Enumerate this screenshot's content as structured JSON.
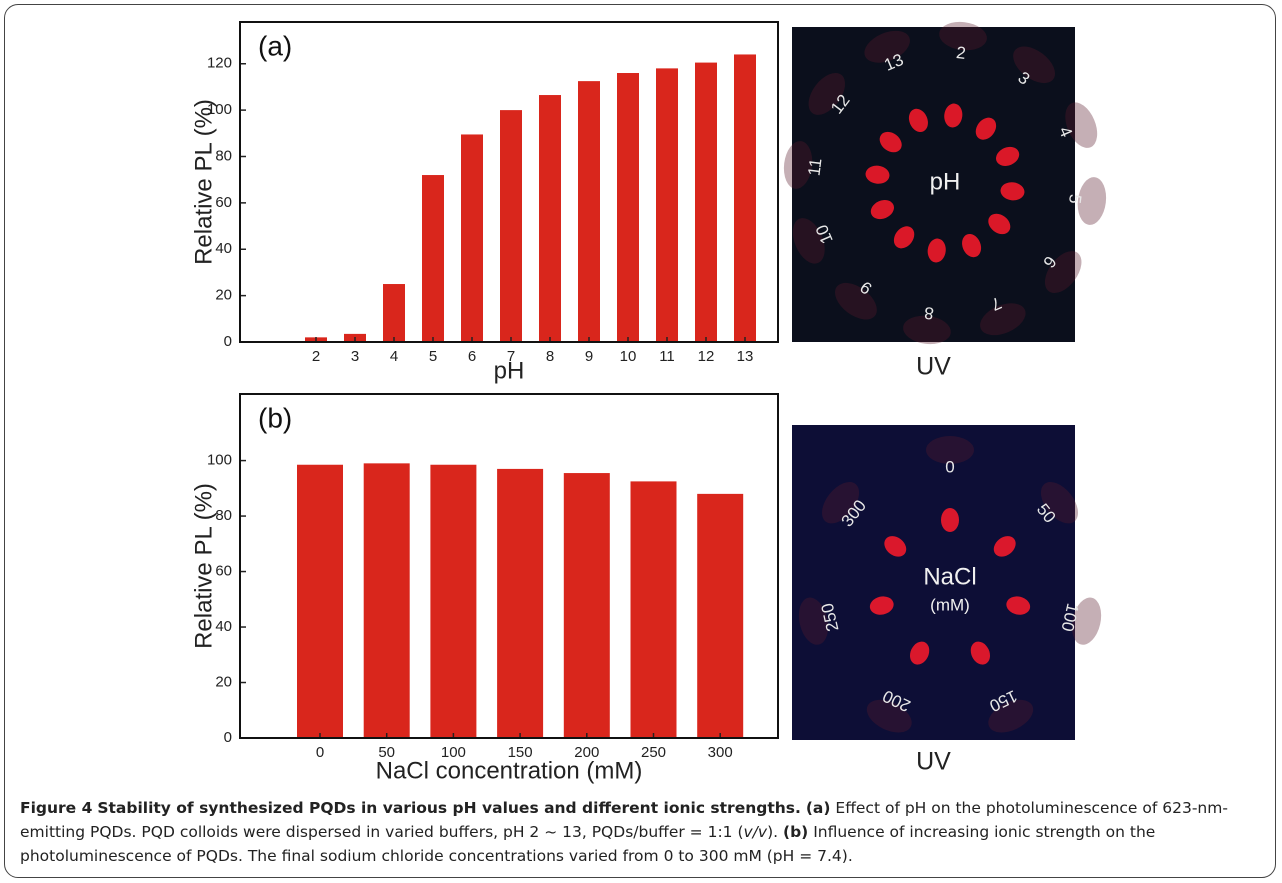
{
  "chart_data": [
    {
      "type": "bar",
      "panel_label": "(a)",
      "x_label": "pH",
      "y_label": "Relative PL (%)",
      "categories": [
        "2",
        "3",
        "4",
        "5",
        "6",
        "7",
        "8",
        "9",
        "10",
        "11",
        "12",
        "13"
      ],
      "values": [
        2,
        3.5,
        25,
        72,
        89.5,
        100,
        106.5,
        112.5,
        116,
        118,
        120.5,
        124
      ],
      "color": "#d9261c",
      "ylim": [
        0,
        138
      ],
      "yticks": [
        0,
        20,
        40,
        60,
        80,
        100,
        120
      ]
    },
    {
      "type": "bar",
      "panel_label": "(b)",
      "x_label": "NaCl concentration (mM)",
      "y_label": "Relative PL (%)",
      "categories": [
        "0",
        "50",
        "100",
        "150",
        "200",
        "250",
        "300"
      ],
      "values": [
        98.5,
        99,
        98.5,
        97,
        95.5,
        92.5,
        88
      ],
      "color": "#d9261c",
      "ylim": [
        0,
        124
      ],
      "yticks": [
        0,
        20,
        40,
        60,
        80,
        100
      ]
    }
  ],
  "photos": [
    {
      "labels": [
        "2",
        "3",
        "4",
        "5",
        "6",
        "7",
        "8",
        "9",
        "10",
        "11",
        "12",
        "13"
      ],
      "center": [
        "pH"
      ],
      "caption": "UV"
    },
    {
      "labels": [
        "0",
        "50",
        "100",
        "150",
        "200",
        "250",
        "300"
      ],
      "center": [
        "NaCl",
        "(mM)"
      ],
      "caption": "UV"
    }
  ],
  "caption": {
    "figure": "Figure 4",
    "title": "Stability of synthesized PQDs in various pH values and different ionic strengths.",
    "panel_a": "(a)",
    "text_a1": "Effect of pH on the photoluminescence of 623-nm-emitting PQDs. PQD colloids were dispersed in varied buffers, pH 2 ~ 13, PQDs/buffer = 1:1 (",
    "text_a_italic": "v/v",
    "text_a2": ").",
    "panel_b": "(b)",
    "text_b": "Influence of increasing ionic strength on the photoluminescence of PQDs. The final sodium chloride concentrations varied from 0 to 300 mM (pH = 7.4)."
  }
}
